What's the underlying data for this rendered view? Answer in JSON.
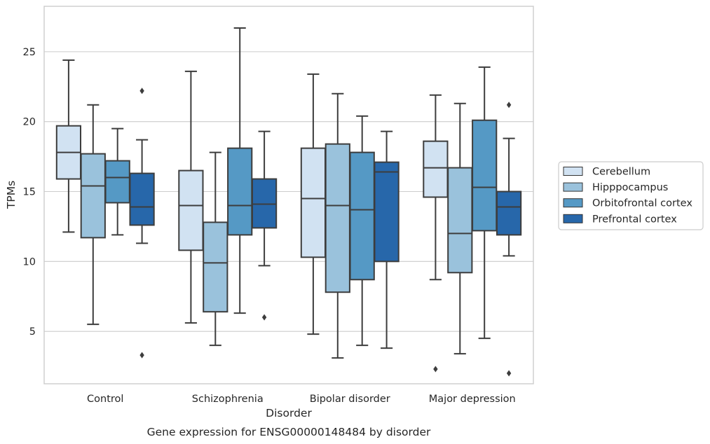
{
  "chart_data": {
    "type": "box",
    "xlabel": "Disorder",
    "ylabel": "TPMs",
    "caption": "Gene expression for ENSG00000148484 by disorder",
    "ylim": [
      1.25,
      28.25
    ],
    "yticks": [
      5,
      10,
      15,
      20,
      25
    ],
    "grid": "horizontal",
    "legend_position": "right",
    "categories": [
      "Control",
      "Schizophrenia",
      "Bipolar disorder",
      "Major depression"
    ],
    "series": [
      {
        "name": "Cerebellum",
        "color": "#d1e2f2",
        "boxes": [
          {
            "whislo": 12.1,
            "q1": 15.9,
            "med": 17.8,
            "q3": 19.7,
            "whishi": 24.4,
            "fliers": []
          },
          {
            "whislo": 5.6,
            "q1": 10.8,
            "med": 14.0,
            "q3": 16.5,
            "whishi": 23.6,
            "fliers": []
          },
          {
            "whislo": 4.8,
            "q1": 10.3,
            "med": 14.5,
            "q3": 18.1,
            "whishi": 23.4,
            "fliers": []
          },
          {
            "whislo": 8.7,
            "q1": 14.6,
            "med": 16.7,
            "q3": 18.6,
            "whishi": 21.9,
            "fliers": []
          }
        ]
      },
      {
        "name": "Hipppocampus",
        "color": "#9ac2dc",
        "boxes": [
          {
            "whislo": 5.5,
            "q1": 11.7,
            "med": 15.4,
            "q3": 17.7,
            "whishi": 21.2,
            "fliers": []
          },
          {
            "whislo": 4.0,
            "q1": 6.4,
            "med": 9.9,
            "q3": 12.8,
            "whishi": 17.8,
            "fliers": []
          },
          {
            "whislo": 3.1,
            "q1": 7.8,
            "med": 14.0,
            "q3": 18.4,
            "whishi": 22.0,
            "fliers": []
          },
          {
            "whislo": 3.4,
            "q1": 9.2,
            "med": 12.0,
            "q3": 16.7,
            "whishi": 21.3,
            "fliers": []
          }
        ]
      },
      {
        "name": "Orbitofrontal cortex",
        "color": "#5599c5",
        "boxes": [
          {
            "whislo": 11.9,
            "q1": 14.2,
            "med": 16.0,
            "q3": 17.2,
            "whishi": 19.5,
            "fliers": []
          },
          {
            "whislo": 6.3,
            "q1": 11.9,
            "med": 14.0,
            "q3": 18.1,
            "whishi": 26.7,
            "fliers": []
          },
          {
            "whislo": 4.0,
            "q1": 8.7,
            "med": 13.7,
            "q3": 17.8,
            "whishi": 20.4,
            "fliers": []
          },
          {
            "whislo": 4.5,
            "q1": 12.2,
            "med": 15.3,
            "q3": 20.1,
            "whishi": 23.9,
            "fliers": []
          }
        ]
      },
      {
        "name": "Prefrontal cortex",
        "color": "#2767aa",
        "boxes": [
          {
            "whislo": 11.3,
            "q1": 12.6,
            "med": 13.9,
            "q3": 16.3,
            "whishi": 18.7,
            "fliers": [
              22.2,
              3.3
            ]
          },
          {
            "whislo": 9.7,
            "q1": 12.4,
            "med": 14.1,
            "q3": 15.9,
            "whishi": 19.3,
            "fliers": [
              6.0
            ]
          },
          {
            "whislo": 3.8,
            "q1": 10.0,
            "med": 16.4,
            "q3": 17.1,
            "whishi": 19.3,
            "fliers": []
          },
          {
            "whislo": 10.4,
            "q1": 11.9,
            "med": 13.9,
            "q3": 15.0,
            "whishi": 18.8,
            "fliers": [
              21.2,
              2.0
            ]
          }
        ]
      }
    ],
    "extra_fliers": [
      {
        "series": 0,
        "category": 3,
        "value": 2.3
      }
    ]
  }
}
